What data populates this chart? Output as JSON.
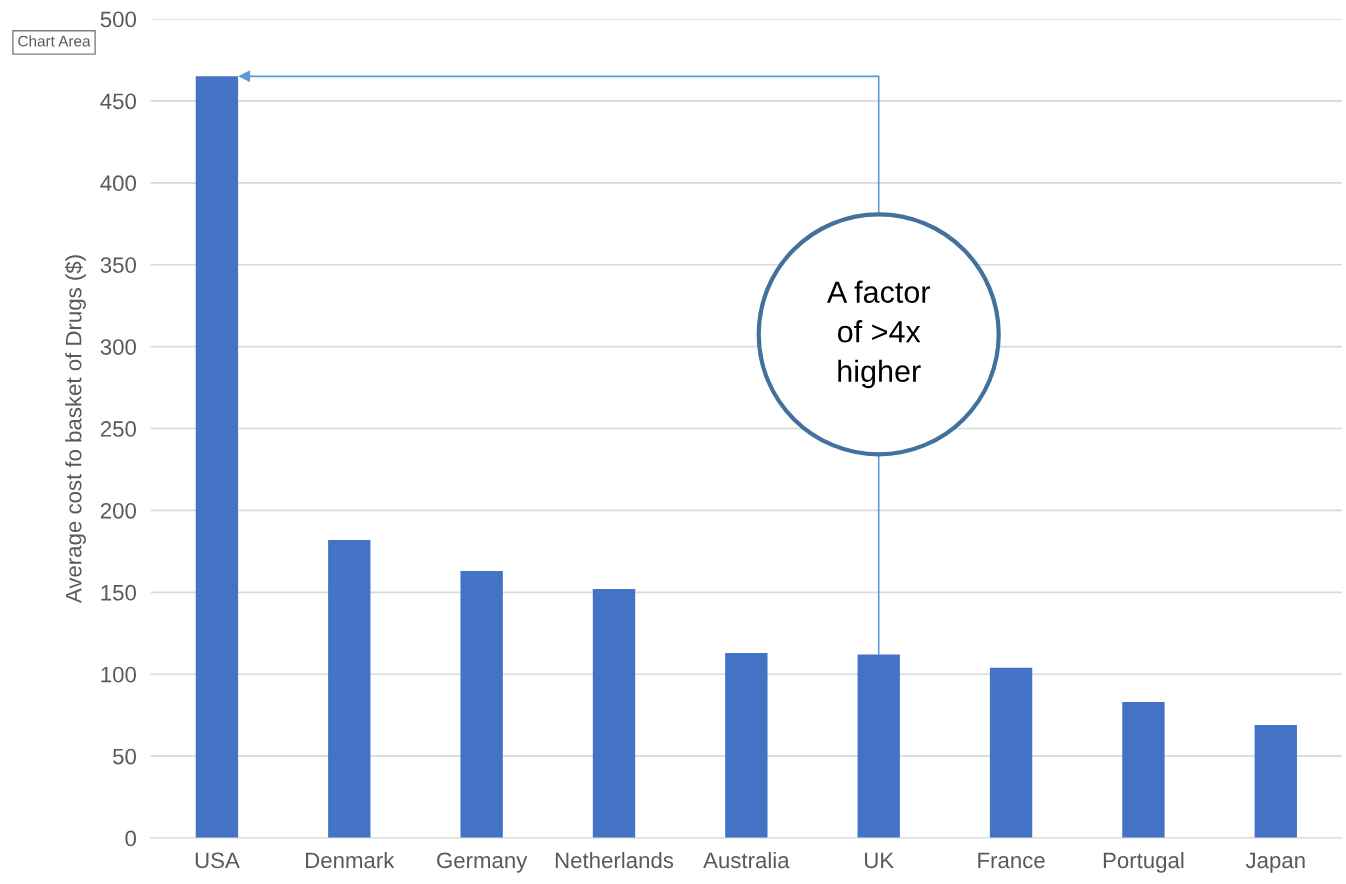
{
  "chart_data": {
    "type": "bar",
    "ylabel": "Average cost fo basket of Drugs ($)",
    "categories": [
      "USA",
      "Denmark",
      "Germany",
      "Netherlands",
      "Australia",
      "UK",
      "France",
      "Portugal",
      "Japan"
    ],
    "values": [
      465,
      182,
      163,
      152,
      113,
      112,
      104,
      83,
      69
    ],
    "color": "#4472c4",
    "ylim": [
      0,
      500
    ],
    "yticks": [
      0,
      50,
      100,
      150,
      200,
      250,
      300,
      350,
      400,
      450,
      500
    ],
    "grid": "y",
    "annotations": [
      "A factor\nof >4x\nhigher",
      "Chart Area"
    ]
  }
}
